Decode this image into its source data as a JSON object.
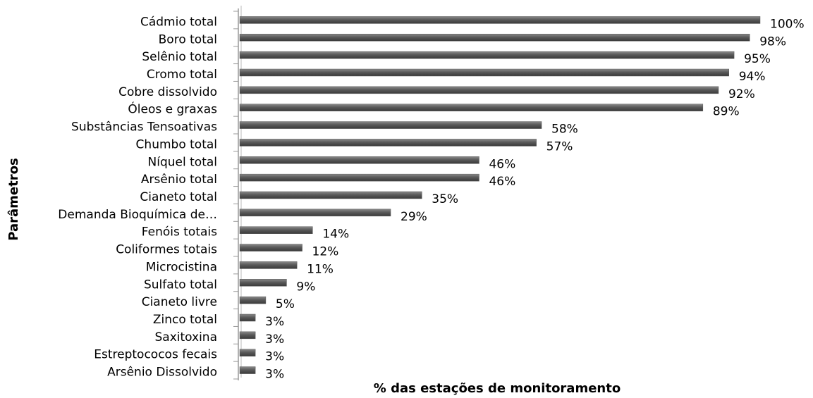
{
  "chart_data": {
    "type": "barh",
    "xlabel": "% das estações de monitoramento",
    "ylabel": "Parâmetros",
    "categories": [
      "Cádmio total",
      "Boro total",
      "Selênio total",
      "Cromo total",
      "Cobre dissolvido",
      "Óleos e graxas",
      "Substâncias Tensoativas",
      "Chumbo total",
      "Níquel total",
      "Arsênio total",
      "Cianeto total",
      "Demanda Bioquímica de…",
      "Fenóis totais",
      "Coliformes totais",
      "Microcistina",
      "Sulfato total",
      "Cianeto livre",
      "Zinco total",
      "Saxitoxina",
      "Estreptococos fecais",
      "Arsênio Dissolvido"
    ],
    "values": [
      100,
      98,
      95,
      94,
      92,
      89,
      58,
      57,
      46,
      46,
      35,
      29,
      14,
      12,
      11,
      9,
      5,
      3,
      3,
      3,
      3
    ],
    "value_labels": [
      "100%",
      "98%",
      "95%",
      "94%",
      "92%",
      "89%",
      "58%",
      "57%",
      "46%",
      "46%",
      "35%",
      "29%",
      "14%",
      "12%",
      "11%",
      "9%",
      "5%",
      "3%",
      "3%",
      "3%",
      "3%"
    ],
    "color": "#5a5a5a",
    "xlim": [
      0,
      100
    ]
  }
}
